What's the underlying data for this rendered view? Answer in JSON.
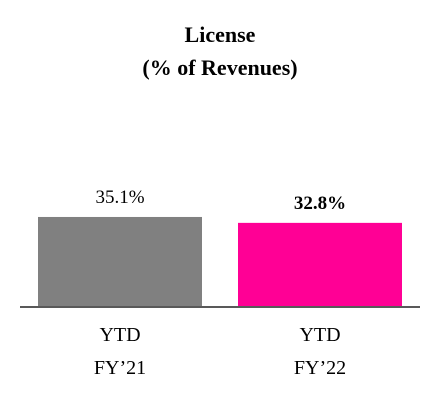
{
  "chart_data": {
    "type": "bar",
    "title": "License\n(% of Revenues)",
    "categories": [
      "YTD\nFY’21",
      "YTD\nFY’22"
    ],
    "values": [
      35.1,
      32.8
    ],
    "value_labels": [
      "35.1%",
      "32.8%"
    ],
    "value_label_bold": [
      false,
      true
    ],
    "colors": [
      "#808080",
      "#ff0095"
    ]
  }
}
